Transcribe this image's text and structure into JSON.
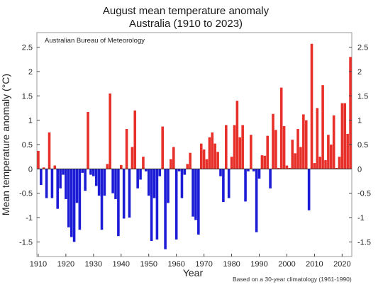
{
  "chart_data": {
    "type": "bar",
    "title": "August mean temperature anomaly",
    "subtitle": "Australia (1910 to 2023)",
    "xlabel": "Year",
    "ylabel": "Mean temperature anomaly (°C)",
    "source_label": "Australian Bureau of Meteorology",
    "note": "Based on a 30-year climatology (1961-1990)",
    "xlim": [
      1909.5,
      2023.5
    ],
    "ylim": [
      -1.8,
      2.8
    ],
    "x_ticks": [
      1910,
      1920,
      1930,
      1940,
      1950,
      1960,
      1970,
      1980,
      1990,
      2000,
      2010,
      2020
    ],
    "y_ticks": [
      -1.5,
      -1,
      -0.5,
      0,
      0.5,
      1,
      1.5,
      2,
      2.5
    ],
    "y_tick_labels": [
      "-1.5",
      "-1",
      "-0.5",
      "0",
      "0.5",
      "1",
      "1.5",
      "2",
      "2.5"
    ],
    "grid": false,
    "colors": {
      "positive": "#e8302a",
      "negative": "#1c1cd6"
    },
    "x": [
      1910,
      1911,
      1912,
      1913,
      1914,
      1915,
      1916,
      1917,
      1918,
      1919,
      1920,
      1921,
      1922,
      1923,
      1924,
      1925,
      1926,
      1927,
      1928,
      1929,
      1930,
      1931,
      1932,
      1933,
      1934,
      1935,
      1936,
      1937,
      1938,
      1939,
      1940,
      1941,
      1942,
      1943,
      1944,
      1945,
      1946,
      1947,
      1948,
      1949,
      1950,
      1951,
      1952,
      1953,
      1954,
      1955,
      1956,
      1957,
      1958,
      1959,
      1960,
      1961,
      1962,
      1963,
      1964,
      1965,
      1966,
      1967,
      1968,
      1969,
      1970,
      1971,
      1972,
      1973,
      1974,
      1975,
      1976,
      1977,
      1978,
      1979,
      1980,
      1981,
      1982,
      1983,
      1984,
      1985,
      1986,
      1987,
      1988,
      1989,
      1990,
      1991,
      1992,
      1993,
      1994,
      1995,
      1996,
      1997,
      1998,
      1999,
      2000,
      2001,
      2002,
      2003,
      2004,
      2005,
      2006,
      2007,
      2008,
      2009,
      2010,
      2011,
      2012,
      2013,
      2014,
      2015,
      2016,
      2017,
      2018,
      2019,
      2020,
      2021,
      2022,
      2023
    ],
    "values": [
      0.37,
      -0.33,
      0.03,
      -0.6,
      0.75,
      -0.6,
      0.07,
      -0.82,
      -0.4,
      -0.12,
      -0.62,
      -1.2,
      -1.4,
      -1.5,
      -0.7,
      -1.25,
      -0.08,
      -0.45,
      1.17,
      -0.12,
      -0.15,
      -0.35,
      -0.55,
      -1.25,
      -0.55,
      0.1,
      1.55,
      -0.5,
      -0.62,
      -1.38,
      0.08,
      -1.02,
      0.82,
      -1.0,
      0.45,
      1.2,
      -0.4,
      -0.22,
      0.25,
      -0.05,
      -0.55,
      -1.48,
      -0.6,
      -1.45,
      -0.15,
      0.87,
      -1.65,
      -0.7,
      0.2,
      0.45,
      -1.45,
      -0.05,
      -0.6,
      -0.12,
      0.1,
      0.33,
      -0.98,
      -1.05,
      -1.35,
      0.52,
      0.4,
      0.2,
      0.65,
      0.75,
      0.52,
      0.35,
      -0.15,
      -0.68,
      0.9,
      -0.6,
      0.25,
      0.9,
      1.4,
      0.65,
      0.9,
      -0.67,
      -0.05,
      0.7,
      -0.05,
      -1.3,
      -0.2,
      0.28,
      0.27,
      0.68,
      -0.4,
      1.13,
      0.8,
      0.02,
      1.67,
      0.88,
      0.07,
      0.02,
      0.6,
      0.32,
      0.82,
      0.45,
      1.12,
      1.0,
      -0.85,
      2.57,
      0.12,
      1.25,
      0.25,
      1.72,
      0.18,
      0.7,
      0.5,
      1.1,
      0.02,
      0.25,
      1.35,
      1.35,
      0.72,
      2.3
    ]
  }
}
